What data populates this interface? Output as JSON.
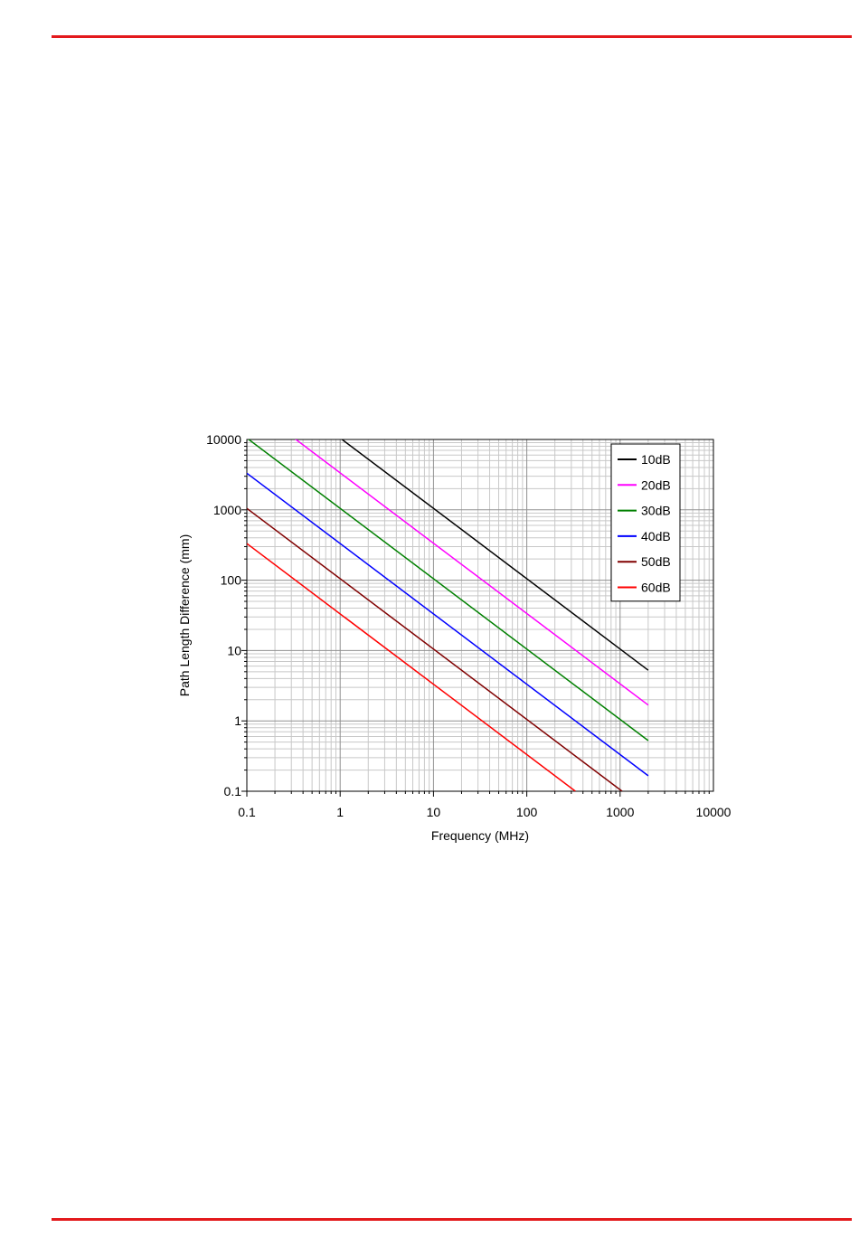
{
  "page": {
    "rule_color": "#e3191c"
  },
  "chart_data": {
    "type": "line",
    "xscale": "log",
    "yscale": "log",
    "xlim": [
      0.1,
      10000
    ],
    "ylim": [
      0.1,
      10000
    ],
    "xlabel": "Frequency (MHz)",
    "ylabel": "Path Length Difference (mm)",
    "xticks": [
      "0.1",
      "1",
      "10",
      "100",
      "1000",
      "10000"
    ],
    "yticks": [
      "0.1",
      "1",
      "10",
      "100",
      "1000",
      "10000"
    ],
    "grid": true,
    "legend_position": "top-right",
    "series": [
      {
        "name": "10dB",
        "color": "#000000",
        "x": [
          1,
          2000
        ],
        "y": [
          10500,
          5.25
        ]
      },
      {
        "name": "20dB",
        "color": "#ff00ff",
        "x": [
          0.32,
          2000
        ],
        "y": [
          10500,
          1.68
        ]
      },
      {
        "name": "30dB",
        "color": "#008000",
        "x": [
          0.1,
          2000
        ],
        "y": [
          10500,
          0.525
        ]
      },
      {
        "name": "40dB",
        "color": "#0000ff",
        "x": [
          0.1,
          2000
        ],
        "y": [
          3320,
          0.166
        ]
      },
      {
        "name": "50dB",
        "color": "#800000",
        "x": [
          0.1,
          1050
        ],
        "y": [
          1050,
          0.1
        ]
      },
      {
        "name": "60dB",
        "color": "#ff0000",
        "x": [
          0.1,
          332
        ],
        "y": [
          332,
          0.1
        ]
      }
    ]
  }
}
